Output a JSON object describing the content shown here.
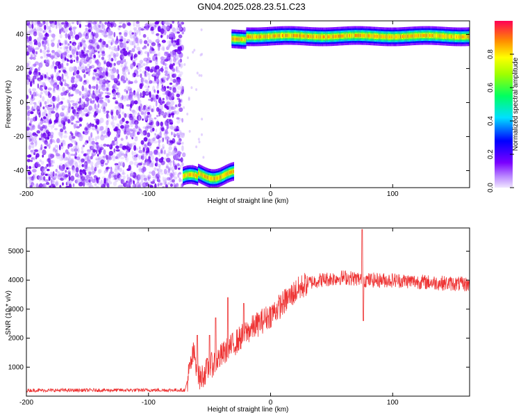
{
  "title": "GN04.2025.028.23.51.C23",
  "chart_data": [
    {
      "type": "heatmap",
      "xlabel": "Height of straight line (km)",
      "ylabel": "Frequency (Hz)",
      "xlim": [
        -200,
        163
      ],
      "ylim": [
        -50,
        48
      ],
      "xticks": [
        -200,
        -100,
        0,
        100
      ],
      "yticks": [
        -40,
        -20,
        0,
        20,
        40
      ],
      "colorbar": {
        "label": "Normalized spectral amplitude",
        "range": [
          0,
          1
        ],
        "ticks": [
          0.0,
          0.2,
          0.4,
          0.6,
          0.8
        ],
        "colormap": "rainbow"
      },
      "features": [
        {
          "name": "noise",
          "x_range": [
            -200,
            -72
          ],
          "y_range": [
            -50,
            48
          ],
          "amplitude": 0.05
        },
        {
          "name": "low-band trace",
          "x_range": [
            -72,
            -30
          ],
          "frequency": [
            -46,
            -40
          ],
          "amplitude_peak": 0.9
        },
        {
          "name": "high-band trace",
          "x_range": [
            -32,
            163
          ],
          "frequency": [
            36,
            41
          ],
          "amplitude_peak": 0.9
        }
      ]
    },
    {
      "type": "line",
      "xlabel": "Height of straight line (km)",
      "ylabel": "SNR (10 * v/v)",
      "xlim": [
        -200,
        163
      ],
      "ylim": [
        0,
        5800
      ],
      "xticks": [
        -200,
        -100,
        0,
        100
      ],
      "yticks": [
        1000,
        2000,
        3000,
        4000,
        5000
      ],
      "color": "#ee3333",
      "envelope": {
        "x": [
          -200,
          -70,
          -63,
          -58,
          -50,
          -40,
          -30,
          -20,
          -10,
          0,
          10,
          20,
          30,
          40,
          60,
          80,
          100,
          120,
          140,
          163
        ],
        "y": [
          200,
          210,
          1500,
          600,
          1000,
          1400,
          1800,
          2200,
          2500,
          2800,
          3200,
          3600,
          3900,
          4000,
          4100,
          4000,
          4000,
          3950,
          3900,
          3850
        ]
      },
      "spikes": [
        {
          "x": -60,
          "y": 2100
        },
        {
          "x": -50,
          "y": 2100
        },
        {
          "x": -45,
          "y": 2700
        },
        {
          "x": -35,
          "y": 3400
        },
        {
          "x": -22,
          "y": 3200
        },
        {
          "x": 75,
          "y": 5750
        },
        {
          "x": 76,
          "y": 2600
        }
      ]
    }
  ]
}
